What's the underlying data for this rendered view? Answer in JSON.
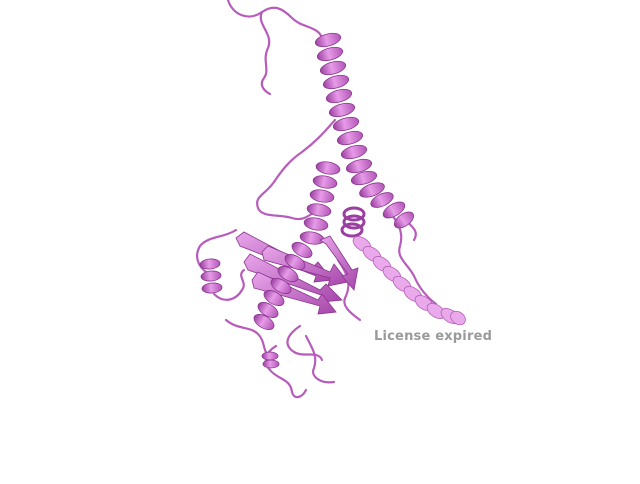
{
  "viewer": {
    "background_color": "#ffffff",
    "molecule_color": "#d67ad8",
    "molecule_shadow_color": "#9a3fa0",
    "molecule_light_color": "#eeb5ee",
    "representation": "cartoon"
  },
  "watermark": {
    "text": "License expired",
    "color": "#9a9a9a"
  }
}
